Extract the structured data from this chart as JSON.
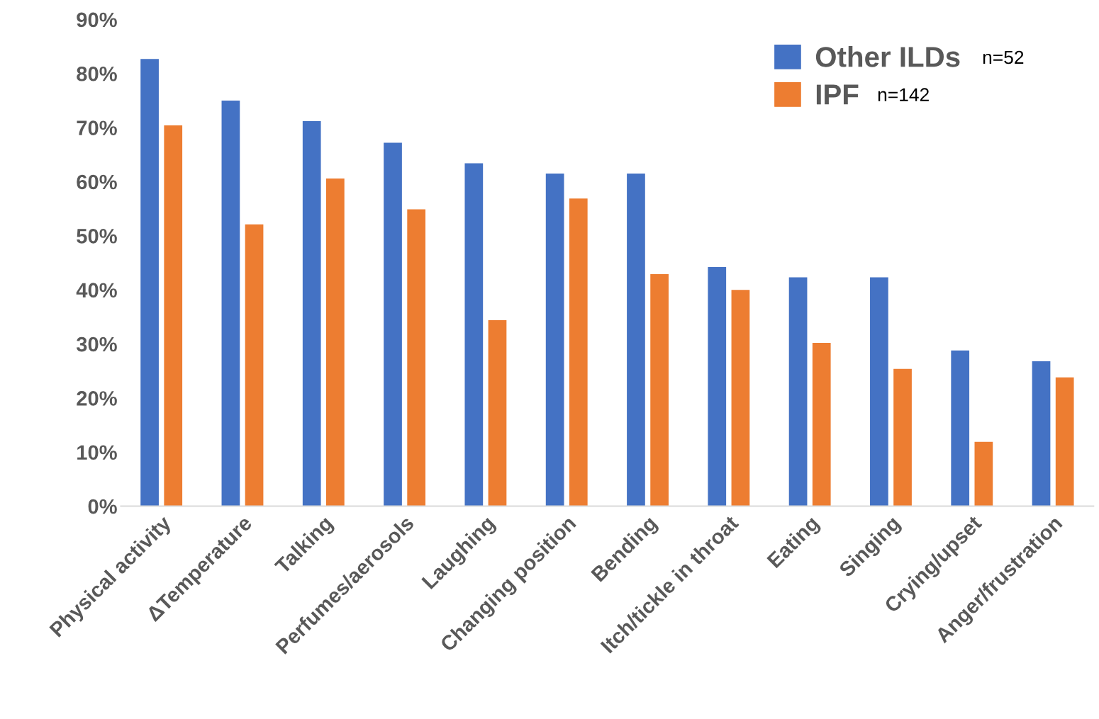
{
  "chart_data": {
    "type": "bar",
    "categories": [
      "Physical activity",
      "ΔTemperature",
      "Talking",
      "Perfumes/aerosols",
      "Laughing",
      "Changing position",
      "Bending",
      "Itch/tickle in throat",
      "Eating",
      "Singing",
      "Crying/upset",
      "Anger/frustration"
    ],
    "series": [
      {
        "name": "Other ILDs",
        "color": "#4472c4",
        "values": [
          82.7,
          75.0,
          71.2,
          67.2,
          63.4,
          61.5,
          61.5,
          44.2,
          42.3,
          42.3,
          28.8,
          26.8
        ]
      },
      {
        "name": "IPF",
        "color": "#ed7d31",
        "values": [
          70.4,
          52.1,
          60.6,
          54.9,
          34.4,
          56.9,
          42.9,
          40.0,
          30.2,
          25.4,
          11.9,
          23.8
        ]
      }
    ],
    "ylim": [
      0,
      90
    ],
    "yticks": [
      {
        "value": 0,
        "label": "0%"
      },
      {
        "value": 10,
        "label": "10%"
      },
      {
        "value": 20,
        "label": "20%"
      },
      {
        "value": 30,
        "label": "30%"
      },
      {
        "value": 40,
        "label": "40%"
      },
      {
        "value": 50,
        "label": "50%"
      },
      {
        "value": 60,
        "label": "60%"
      },
      {
        "value": 70,
        "label": "70%"
      },
      {
        "value": 80,
        "label": "80%"
      },
      {
        "value": 90,
        "label": "90%"
      }
    ],
    "grid": false,
    "legend": "top right",
    "annotations": [
      "n=52",
      "n=142"
    ]
  }
}
